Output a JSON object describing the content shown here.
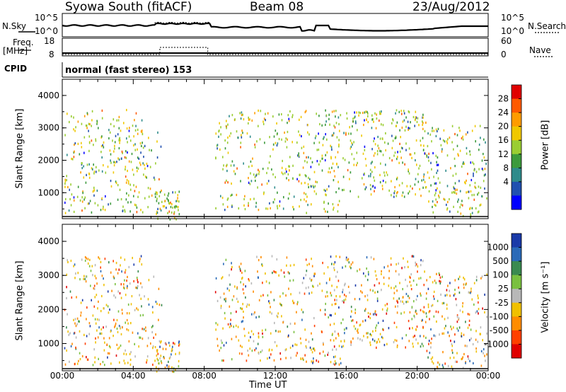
{
  "header": {
    "title": "Syowa South (fitACF)",
    "beam": "Beam 08",
    "date": "23/Aug/2012"
  },
  "panels": {
    "nsky_label": "N.Sky",
    "nsearch_label": "N.Search",
    "freq_label": "Freq.",
    "freq_unit": "[MHz]",
    "nave_label": "Nave",
    "cpid_label": "CPID",
    "cpid_value": "normal (fast stereo) 153",
    "noise_ticks": [
      "10^5",
      "10^0"
    ],
    "freq_ticks": [
      "18",
      "8"
    ],
    "nave_ticks": [
      "60",
      "0"
    ]
  },
  "chart_data": [
    {
      "type": "scatter",
      "name": "range-time power plot",
      "ylabel": "Slant Range [km]",
      "xlabel": "Time UT",
      "ylim": [
        200,
        4500
      ],
      "yticks": [
        "4000",
        "3000",
        "2000",
        "1000"
      ],
      "xticks": [
        "00:00",
        "04:00",
        "08:00",
        "12:00",
        "16:00",
        "20:00",
        "00:00"
      ],
      "xlim_hours": [
        0,
        24
      ],
      "colorbar": {
        "label": "Power [dB]",
        "ticks": [
          "28",
          "24",
          "20",
          "16",
          "12",
          "8",
          "4"
        ],
        "colors": [
          "#e00000",
          "#ff5a00",
          "#ff9c00",
          "#f0c800",
          "#9acd32",
          "#3c9a3c",
          "#2e8b8b",
          "#2050b0",
          "#0000ff"
        ]
      }
    },
    {
      "type": "scatter",
      "name": "range-time velocity plot",
      "ylabel": "Slant Range [km]",
      "xlabel": "Time UT",
      "ylim": [
        200,
        4500
      ],
      "yticks": [
        "4000",
        "3000",
        "2000",
        "1000"
      ],
      "xticks": [
        "00:00",
        "04:00",
        "08:00",
        "12:00",
        "16:00",
        "20:00",
        "00:00"
      ],
      "xlim_hours": [
        0,
        24
      ],
      "colorbar": {
        "label": "Velocity [m s⁻¹]",
        "ticks": [
          "1000",
          "500",
          "100",
          "25",
          "-25",
          "-100",
          "-500",
          "-1000"
        ],
        "colors": [
          "#1a3aa8",
          "#2a6ab8",
          "#3a8a50",
          "#7ac040",
          "#b8b8b8",
          "#f0c000",
          "#ff8c00",
          "#ff4000",
          "#e00000"
        ]
      }
    }
  ],
  "scatter_density": {
    "regions": [
      {
        "t": [
          0.1,
          4.5
        ],
        "r": [
          400,
          3600
        ],
        "n": 260
      },
      {
        "t": [
          4.5,
          5.6
        ],
        "r": [
          400,
          3000
        ],
        "n": 35
      },
      {
        "t": [
          5.2,
          6.6
        ],
        "r": [
          200,
          1100
        ],
        "n": 55
      },
      {
        "t": [
          8.6,
          13.6
        ],
        "r": [
          500,
          3600
        ],
        "n": 230
      },
      {
        "t": [
          13.6,
          15.8
        ],
        "r": [
          400,
          3600
        ],
        "n": 130
      },
      {
        "t": [
          15.8,
          20.5
        ],
        "r": [
          900,
          3600
        ],
        "n": 260
      },
      {
        "t": [
          20.5,
          23.9
        ],
        "r": [
          300,
          3100
        ],
        "n": 190
      }
    ]
  }
}
